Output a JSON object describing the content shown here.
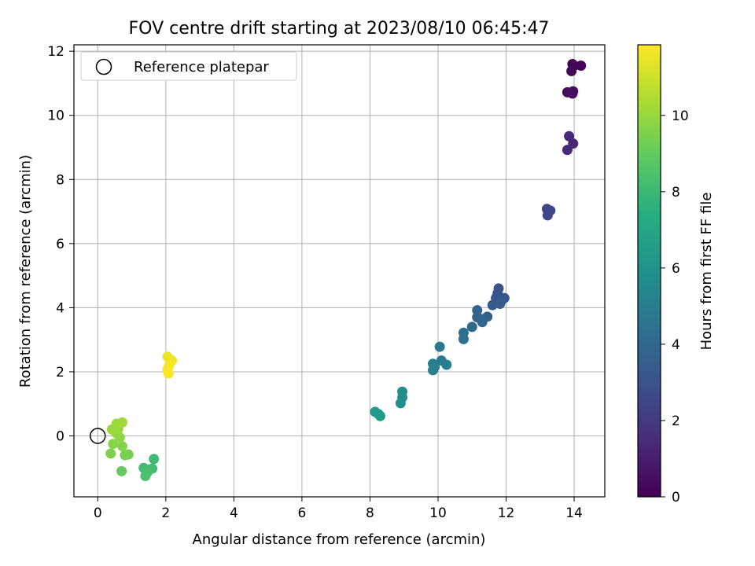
{
  "chart_data": {
    "type": "scatter",
    "title": "FOV centre drift starting at 2023/08/10 06:45:47",
    "xlabel": "Angular distance from reference (arcmin)",
    "ylabel": "Rotation from reference (arcmin)",
    "xlim": [
      -0.7,
      14.9
    ],
    "ylim": [
      -1.9,
      12.2
    ],
    "xticks": [
      0,
      2,
      4,
      6,
      8,
      10,
      12,
      14
    ],
    "yticks": [
      0,
      2,
      4,
      6,
      8,
      10,
      12
    ],
    "grid": true,
    "legend": {
      "position": "top-left",
      "entries": [
        "Reference platepar"
      ]
    },
    "reference_point": {
      "x": 0,
      "y": 0
    },
    "colorbar": {
      "label": "Hours from first FF file",
      "colormap": "viridis",
      "range": [
        0,
        11.85
      ],
      "ticks": [
        0,
        2,
        4,
        6,
        8,
        10
      ]
    },
    "series": [
      {
        "values": [
          {
            "x": 13.95,
            "y": 11.6,
            "c": 0.05
          },
          {
            "x": 14.2,
            "y": 11.55,
            "c": 0.1
          },
          {
            "x": 14.0,
            "y": 11.55,
            "c": 0.15
          },
          {
            "x": 13.92,
            "y": 11.38,
            "c": 0.2
          },
          {
            "x": 13.8,
            "y": 10.72,
            "c": 0.35
          },
          {
            "x": 13.97,
            "y": 10.75,
            "c": 0.4
          },
          {
            "x": 13.95,
            "y": 10.68,
            "c": 0.45
          },
          {
            "x": 13.85,
            "y": 9.35,
            "c": 1.3
          },
          {
            "x": 13.97,
            "y": 9.12,
            "c": 1.35
          },
          {
            "x": 13.8,
            "y": 8.92,
            "c": 1.4
          },
          {
            "x": 13.2,
            "y": 7.08,
            "c": 2.5
          },
          {
            "x": 13.3,
            "y": 7.03,
            "c": 2.55
          },
          {
            "x": 13.22,
            "y": 6.88,
            "c": 2.6
          },
          {
            "x": 11.78,
            "y": 4.6,
            "c": 3.1
          },
          {
            "x": 11.75,
            "y": 4.45,
            "c": 3.15
          },
          {
            "x": 11.7,
            "y": 4.3,
            "c": 3.2
          },
          {
            "x": 11.95,
            "y": 4.3,
            "c": 3.25
          },
          {
            "x": 11.85,
            "y": 4.2,
            "c": 3.3
          },
          {
            "x": 11.6,
            "y": 4.08,
            "c": 3.35
          },
          {
            "x": 11.82,
            "y": 4.12,
            "c": 3.4
          },
          {
            "x": 11.15,
            "y": 3.92,
            "c": 3.7
          },
          {
            "x": 11.45,
            "y": 3.72,
            "c": 3.75
          },
          {
            "x": 11.15,
            "y": 3.7,
            "c": 3.8
          },
          {
            "x": 11.25,
            "y": 3.65,
            "c": 3.85
          },
          {
            "x": 11.3,
            "y": 3.55,
            "c": 3.9
          },
          {
            "x": 11.0,
            "y": 3.4,
            "c": 4.0
          },
          {
            "x": 10.75,
            "y": 3.22,
            "c": 4.2
          },
          {
            "x": 10.75,
            "y": 3.02,
            "c": 4.25
          },
          {
            "x": 10.05,
            "y": 2.78,
            "c": 4.8
          },
          {
            "x": 10.1,
            "y": 2.35,
            "c": 4.9
          },
          {
            "x": 9.85,
            "y": 2.25,
            "c": 5.0
          },
          {
            "x": 10.25,
            "y": 2.22,
            "c": 5.05
          },
          {
            "x": 9.9,
            "y": 2.15,
            "c": 5.1
          },
          {
            "x": 9.85,
            "y": 2.05,
            "c": 5.15
          },
          {
            "x": 8.95,
            "y": 1.38,
            "c": 5.8
          },
          {
            "x": 8.95,
            "y": 1.2,
            "c": 5.85
          },
          {
            "x": 8.9,
            "y": 1.02,
            "c": 5.9
          },
          {
            "x": 8.15,
            "y": 0.75,
            "c": 6.4
          },
          {
            "x": 8.25,
            "y": 0.68,
            "c": 6.45
          },
          {
            "x": 8.3,
            "y": 0.62,
            "c": 6.5
          },
          {
            "x": 1.65,
            "y": -0.72,
            "c": 8.1
          },
          {
            "x": 1.35,
            "y": -1.0,
            "c": 8.2
          },
          {
            "x": 1.6,
            "y": -1.02,
            "c": 8.25
          },
          {
            "x": 1.5,
            "y": -1.05,
            "c": 8.3
          },
          {
            "x": 1.45,
            "y": -1.15,
            "c": 8.35
          },
          {
            "x": 1.4,
            "y": -1.25,
            "c": 8.4
          },
          {
            "x": 0.7,
            "y": -1.1,
            "c": 9.0
          },
          {
            "x": 0.9,
            "y": -0.58,
            "c": 9.3
          },
          {
            "x": 0.8,
            "y": -0.6,
            "c": 9.4
          },
          {
            "x": 0.38,
            "y": -0.55,
            "c": 9.5
          },
          {
            "x": 0.72,
            "y": -0.32,
            "c": 9.6
          },
          {
            "x": 0.45,
            "y": -0.25,
            "c": 9.7
          },
          {
            "x": 0.65,
            "y": -0.05,
            "c": 9.8
          },
          {
            "x": 0.55,
            "y": 0.08,
            "c": 9.9
          },
          {
            "x": 0.42,
            "y": 0.2,
            "c": 10.0
          },
          {
            "x": 0.6,
            "y": 0.22,
            "c": 10.05
          },
          {
            "x": 0.55,
            "y": 0.38,
            "c": 10.1
          },
          {
            "x": 0.72,
            "y": 0.42,
            "c": 10.15
          },
          {
            "x": 2.05,
            "y": 2.47,
            "c": 11.5
          },
          {
            "x": 2.18,
            "y": 2.35,
            "c": 11.6
          },
          {
            "x": 2.1,
            "y": 2.2,
            "c": 11.7
          },
          {
            "x": 2.05,
            "y": 2.08,
            "c": 11.75
          },
          {
            "x": 2.08,
            "y": 1.95,
            "c": 11.85
          }
        ]
      }
    ]
  }
}
